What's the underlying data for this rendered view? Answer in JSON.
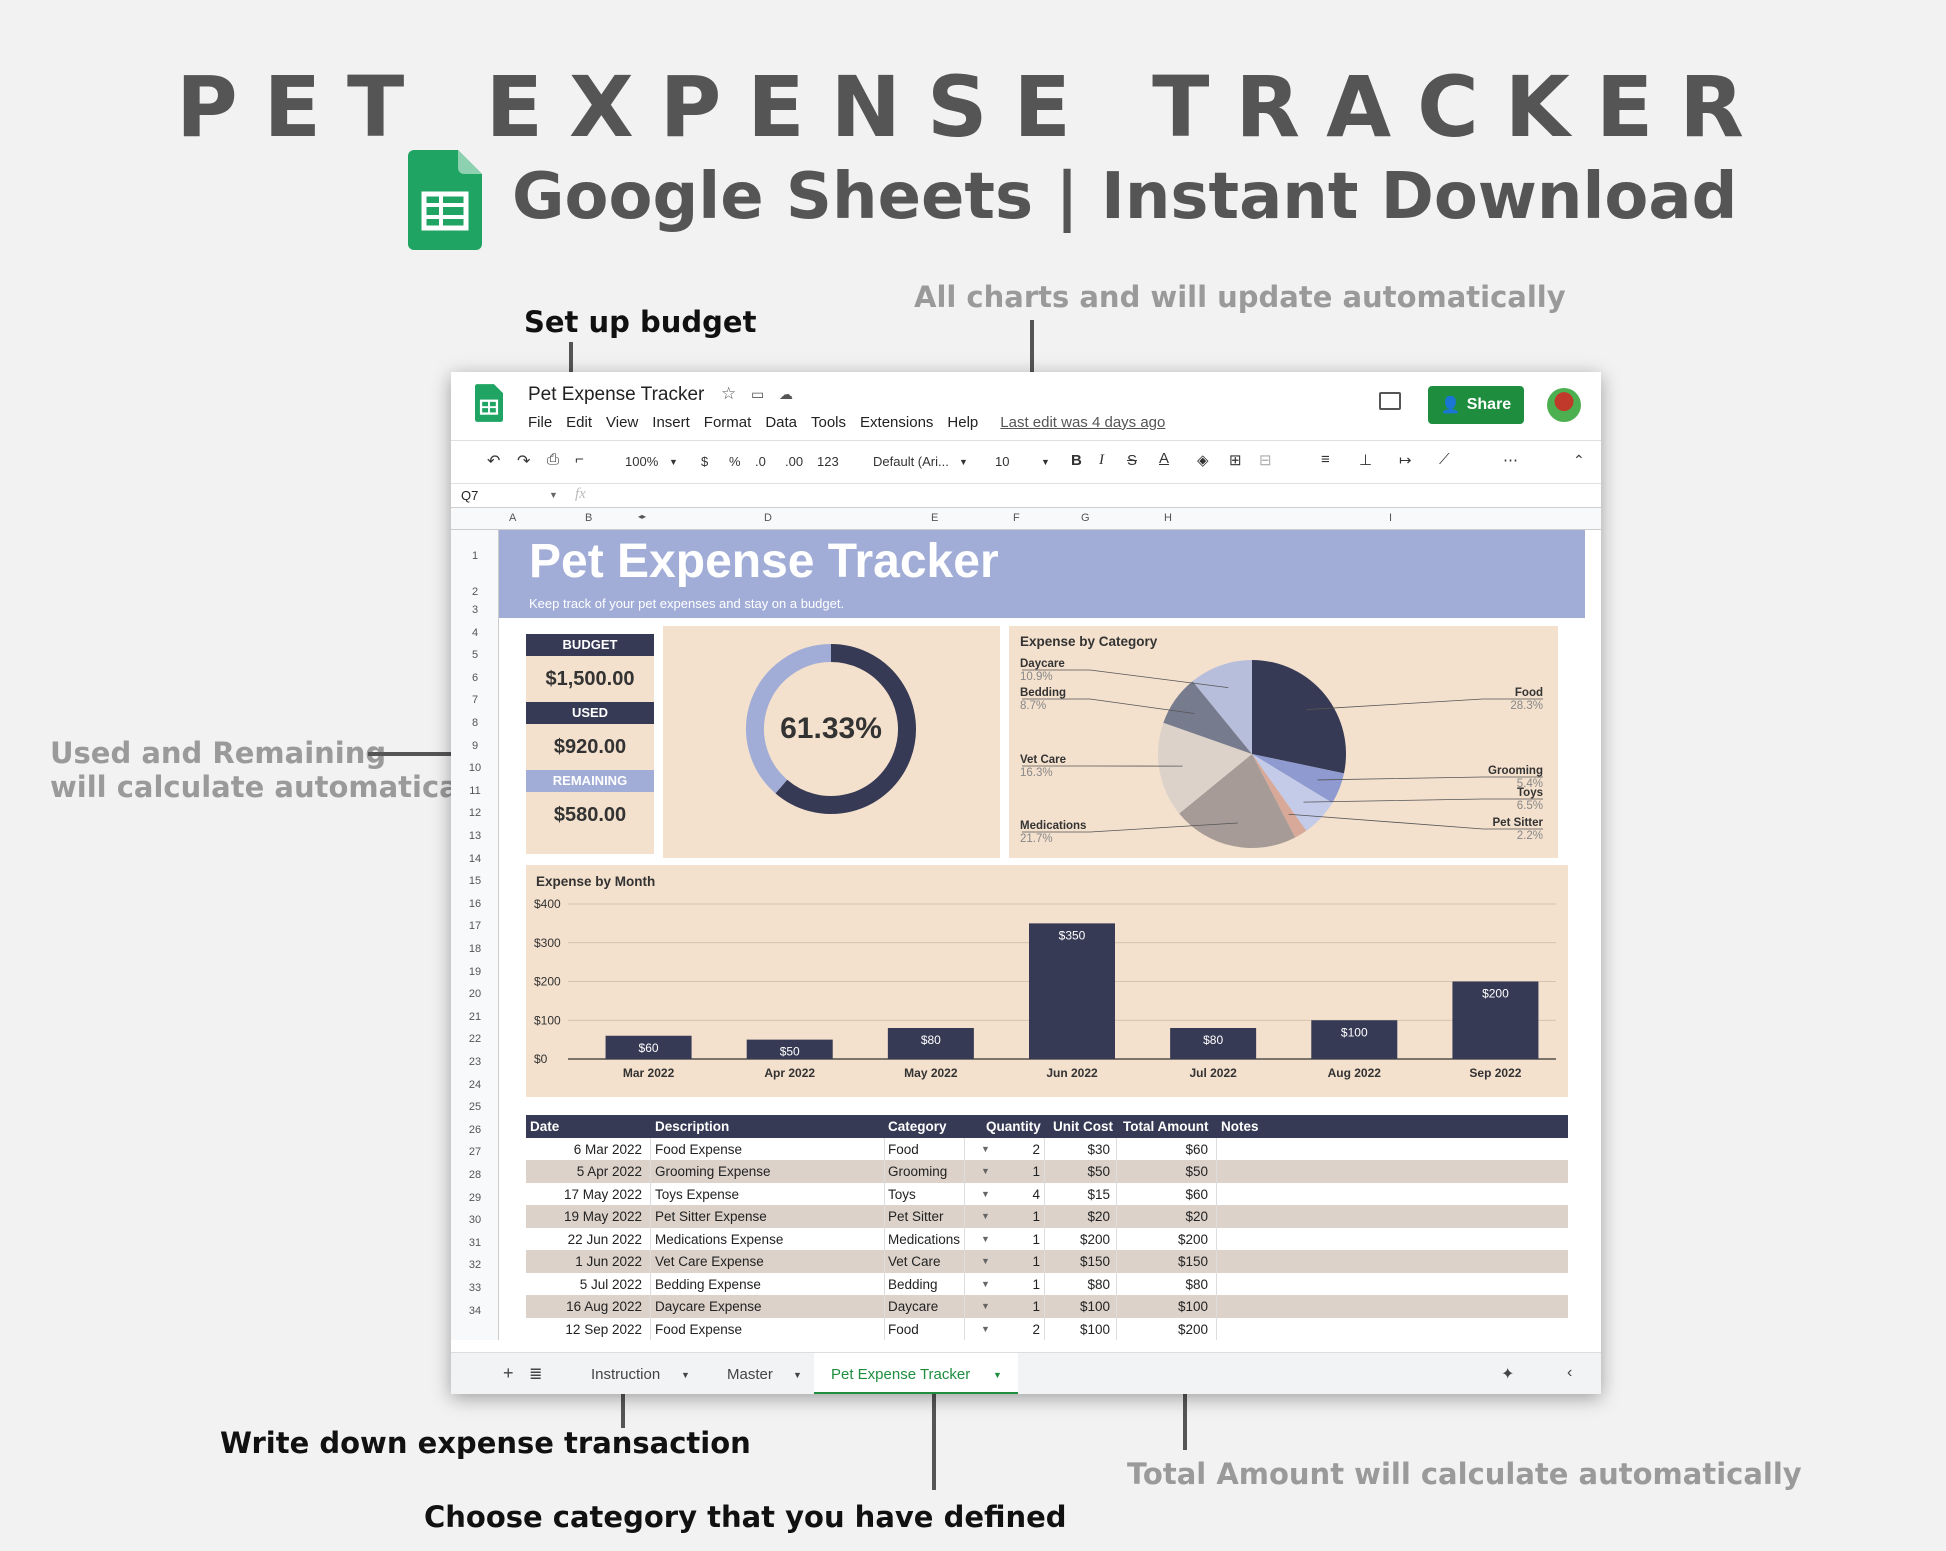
{
  "hero": {
    "title": "PET EXPENSE TRACKER",
    "subtitle": "Google Sheets | Instant Download"
  },
  "callouts": {
    "set_up_budget": "Set up budget",
    "charts_auto": "All charts and will update automatically",
    "used_remaining_1": "Used and Remaining",
    "used_remaining_2": "will calculate automatically",
    "write_expense": "Write down expense transaction",
    "choose_category": "Choose category that you have defined",
    "total_auto": "Total Amount will calculate automatically"
  },
  "window": {
    "doc_title": "Pet Expense Tracker",
    "menus": [
      "File",
      "Edit",
      "View",
      "Insert",
      "Format",
      "Data",
      "Tools",
      "Extensions",
      "Help"
    ],
    "last_edit": "Last edit was 4 days ago",
    "share_label": "Share",
    "toolbar": {
      "zoom": "100%",
      "currency": "$",
      "percent": "%",
      "dec_less": ".0",
      "dec_more": ".00",
      "format_more": "123",
      "font": "Default (Ari...",
      "font_size": "10",
      "bold": "B",
      "italic": "I",
      "strike": "S",
      "text_color": "A",
      "more": "⋯"
    },
    "name_box": "Q7",
    "fx": "fx",
    "columns": [
      "A",
      "B",
      "D",
      "E",
      "F",
      "G",
      "H",
      "I"
    ],
    "rows": [
      "1",
      "2",
      "3",
      "4",
      "5",
      "6",
      "7",
      "8",
      "9",
      "10",
      "11",
      "12",
      "13",
      "14",
      "15",
      "16",
      "17",
      "18",
      "19",
      "20",
      "21",
      "22",
      "23",
      "24",
      "25",
      "26",
      "27",
      "28",
      "29",
      "30",
      "31",
      "32",
      "33",
      "34"
    ],
    "sheet_tabs": [
      "Instruction",
      "Master",
      "Pet Expense Tracker"
    ]
  },
  "sheet": {
    "title": "Pet Expense Tracker",
    "subtitle": "Keep track of your pet expenses and stay on a budget.",
    "budget_label": "BUDGET",
    "budget_value": "$1,500.00",
    "used_label": "USED",
    "used_value": "$920.00",
    "remaining_label": "REMAINING",
    "remaining_value": "$580.00",
    "donut_label": "61.33%"
  },
  "colors": {
    "navy": "#363a54",
    "periwinkle": "#a1add7",
    "peach": "#f3e0cd",
    "green": "#1e8e3e"
  },
  "chart_data": [
    {
      "type": "pie",
      "title": "",
      "labels": [
        "Used",
        "Remaining"
      ],
      "values": [
        920,
        580
      ],
      "center_label": "61.33%"
    },
    {
      "type": "pie",
      "title": "Expense by Category",
      "labels": [
        "Food",
        "Grooming",
        "Toys",
        "Pet Sitter",
        "Medications",
        "Vet Care",
        "Bedding",
        "Daycare"
      ],
      "values": [
        28.3,
        5.4,
        6.5,
        2.2,
        21.7,
        16.3,
        8.7,
        10.9
      ],
      "value_labels": [
        "28.3%",
        "5.4%",
        "6.5%",
        "2.2%",
        "21.7%",
        "16.3%",
        "8.7%",
        "10.9%"
      ],
      "colors": [
        "#363a54",
        "#8e9ad0",
        "#c3cbe8",
        "#d8a898",
        "#a69b96",
        "#dcd2ca",
        "#777b8e",
        "#b7bedb"
      ]
    },
    {
      "type": "bar",
      "title": "Expense by Month",
      "categories": [
        "Mar 2022",
        "Apr 2022",
        "May 2022",
        "Jun 2022",
        "Jul 2022",
        "Aug 2022",
        "Sep 2022"
      ],
      "values": [
        60,
        50,
        80,
        350,
        80,
        100,
        200
      ],
      "value_labels": [
        "$60",
        "$50",
        "$80",
        "$350",
        "$80",
        "$100",
        "$200"
      ],
      "y_ticks": [
        "$0",
        "$100",
        "$200",
        "$300",
        "$400"
      ],
      "ylim": [
        0,
        400
      ]
    }
  ],
  "table": {
    "headers": [
      "Date",
      "Description",
      "Category",
      "Quantity",
      "Unit Cost",
      "Total Amount",
      "Notes"
    ],
    "rows": [
      [
        "6 Mar 2022",
        "Food Expense",
        "Food",
        "2",
        "$30",
        "$60"
      ],
      [
        "5 Apr 2022",
        "Grooming Expense",
        "Grooming",
        "1",
        "$50",
        "$50"
      ],
      [
        "17 May 2022",
        "Toys Expense",
        "Toys",
        "4",
        "$15",
        "$60"
      ],
      [
        "19 May 2022",
        "Pet Sitter Expense",
        "Pet Sitter",
        "1",
        "$20",
        "$20"
      ],
      [
        "22 Jun 2022",
        "Medications Expense",
        "Medications",
        "1",
        "$200",
        "$200"
      ],
      [
        "1 Jun 2022",
        "Vet Care Expense",
        "Vet Care",
        "1",
        "$150",
        "$150"
      ],
      [
        "5 Jul 2022",
        "Bedding Expense",
        "Bedding",
        "1",
        "$80",
        "$80"
      ],
      [
        "16 Aug 2022",
        "Daycare Expense",
        "Daycare",
        "1",
        "$100",
        "$100"
      ],
      [
        "12 Sep 2022",
        "Food Expense",
        "Food",
        "2",
        "$100",
        "$200"
      ]
    ]
  }
}
